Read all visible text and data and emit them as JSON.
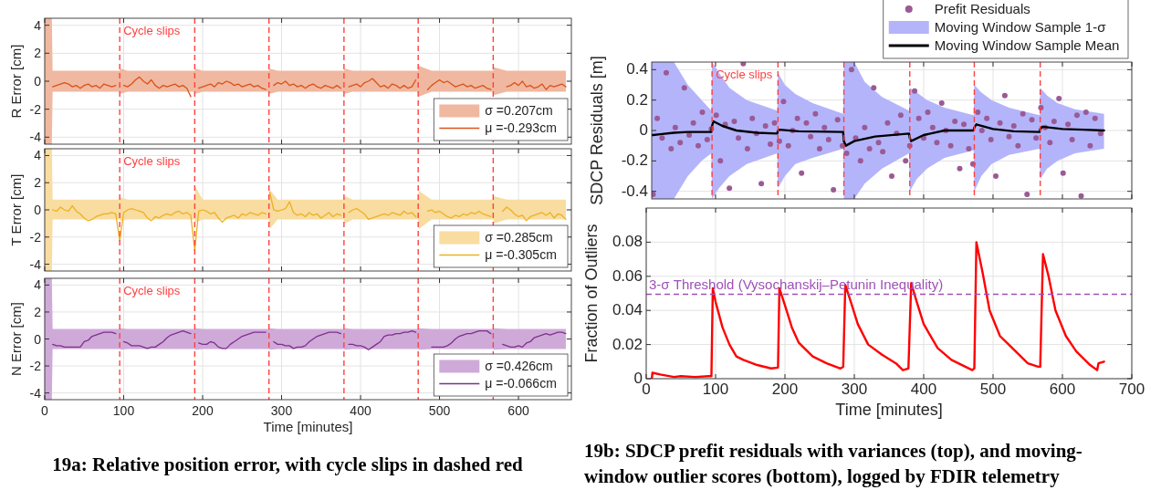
{
  "chart_data": [
    {
      "type": "line",
      "ylabel": "R Error [cm]",
      "xlim": [
        0,
        667
      ],
      "xticks": [
        0,
        100,
        200,
        300,
        400,
        500,
        600
      ],
      "ylim": [
        -4.5,
        4.5
      ],
      "yticks": [
        -4,
        -2,
        0,
        2,
        4
      ],
      "tick_labels": "y",
      "grid": true,
      "legend": "bottom right",
      "ref_lines": [
        {
          "axis": "x",
          "value": 95,
          "label": "Cycle slips",
          "color": "#ff4040",
          "line_style": "dashed"
        },
        {
          "axis": "x",
          "value": 190,
          "color": "#ff4040",
          "line_style": "dashed"
        },
        {
          "axis": "x",
          "value": 284,
          "color": "#ff4040",
          "line_style": "dashed"
        },
        {
          "axis": "x",
          "value": 379,
          "color": "#ff4040",
          "line_style": "dashed"
        },
        {
          "axis": "x",
          "value": 473,
          "color": "#ff4040",
          "line_style": "dashed"
        },
        {
          "axis": "x",
          "value": 568,
          "color": "#ff4040",
          "line_style": "dashed"
        }
      ],
      "series": [
        {
          "name": "σ =0.207cm",
          "color": "#f0b8a0",
          "x": [
            0,
            9,
            10,
            95,
            96,
            105,
            190,
            191,
            200,
            284,
            285,
            295,
            379,
            380,
            390,
            473,
            474,
            490,
            568,
            569,
            585,
            660
          ],
          "values": [
            null,
            null,
            null,
            null,
            null,
            null,
            null,
            null,
            null,
            null,
            null,
            null,
            null,
            null,
            null,
            null,
            null,
            null,
            null,
            null,
            null,
            null
          ],
          "upper": [
            4.5,
            4.5,
            0.75,
            0.75,
            0.9,
            0.75,
            0.75,
            0.9,
            0.75,
            0.75,
            0.9,
            0.75,
            0.75,
            0.9,
            0.75,
            0.75,
            1.1,
            0.75,
            0.75,
            1.0,
            0.75,
            0.75
          ],
          "lower": [
            -4.5,
            -4.5,
            -0.75,
            -0.75,
            -0.9,
            -0.75,
            -0.75,
            -0.9,
            -0.75,
            -0.75,
            -0.9,
            -0.75,
            -0.75,
            -0.9,
            -0.75,
            -0.75,
            -1.1,
            -0.75,
            -0.75,
            -1.0,
            -0.75,
            -0.75
          ]
        },
        {
          "name": "μ =-0.293cm",
          "color": "#d95319",
          "x": [
            10,
            15,
            20,
            25,
            30,
            35,
            40,
            45,
            50,
            55,
            60,
            65,
            70,
            75,
            80,
            85,
            90,
            100,
            105,
            110,
            115,
            120,
            125,
            130,
            135,
            140,
            145,
            150,
            155,
            160,
            165,
            170,
            175,
            180,
            185,
            195,
            200,
            205,
            210,
            215,
            220,
            225,
            230,
            235,
            240,
            245,
            250,
            255,
            260,
            265,
            270,
            275,
            280,
            290,
            295,
            300,
            305,
            310,
            315,
            320,
            325,
            330,
            335,
            340,
            345,
            350,
            355,
            360,
            365,
            370,
            375,
            385,
            390,
            395,
            400,
            405,
            410,
            415,
            420,
            425,
            430,
            435,
            440,
            445,
            450,
            455,
            460,
            465,
            470,
            485,
            490,
            495,
            500,
            505,
            510,
            515,
            520,
            525,
            530,
            535,
            540,
            545,
            550,
            555,
            560,
            565,
            585,
            590,
            595,
            600,
            605,
            610,
            615,
            620,
            625,
            630,
            635,
            640,
            645,
            650,
            655,
            660
          ],
          "values": [
            -0.4,
            -0.3,
            -0.2,
            -0.1,
            -0.2,
            -0.4,
            -0.3,
            -0.5,
            -0.3,
            -0.2,
            -0.4,
            -0.3,
            -0.5,
            -0.2,
            -0.3,
            -0.4,
            -0.3,
            -0.3,
            -0.4,
            -0.2,
            0.1,
            0.3,
            0.0,
            -0.2,
            0.1,
            -0.3,
            -0.5,
            -0.3,
            -0.4,
            -0.3,
            -0.2,
            -0.4,
            -0.3,
            -0.5,
            -1.1,
            -0.5,
            -0.4,
            -0.3,
            -0.2,
            -0.4,
            -0.1,
            -0.2,
            0.0,
            -0.1,
            -0.3,
            -0.2,
            -0.4,
            -0.3,
            -0.2,
            -0.4,
            -0.3,
            -0.5,
            -0.6,
            -0.3,
            -0.1,
            -0.2,
            0.0,
            -0.3,
            -0.2,
            -0.4,
            -0.3,
            -0.5,
            -0.3,
            -0.2,
            -0.4,
            -0.5,
            -0.3,
            -0.4,
            -0.5,
            -0.3,
            -0.5,
            -0.4,
            -0.3,
            -0.2,
            -0.4,
            -0.1,
            0.0,
            0.2,
            -0.1,
            -0.4,
            -0.3,
            -0.5,
            -0.2,
            -0.3,
            -0.5,
            -0.3,
            -0.5,
            -0.4,
            0.1,
            -0.6,
            -0.3,
            -0.1,
            0.1,
            -0.1,
            0.0,
            -0.2,
            -0.4,
            -0.3,
            -0.2,
            -0.4,
            -0.3,
            -0.5,
            -0.4,
            -0.3,
            -0.5,
            -0.6,
            -0.4,
            -0.3,
            -0.1,
            -0.3,
            0.0,
            -0.4,
            -0.3,
            -0.5,
            -0.4,
            -0.2,
            -0.6,
            -0.3,
            -0.4,
            -0.3,
            -0.2,
            -0.4
          ]
        }
      ]
    },
    {
      "type": "line",
      "ylabel": "T Error [cm]",
      "xlim": [
        0,
        667
      ],
      "xticks": [
        0,
        100,
        200,
        300,
        400,
        500,
        600
      ],
      "ylim": [
        -4.5,
        4.5
      ],
      "yticks": [
        -4,
        -2,
        0,
        2,
        4
      ],
      "tick_labels": "y",
      "grid": true,
      "legend": "bottom right",
      "ref_lines": [
        {
          "axis": "x",
          "value": 95,
          "label": "Cycle slips",
          "color": "#ff4040",
          "line_style": "dashed"
        },
        {
          "axis": "x",
          "value": 190,
          "color": "#ff4040",
          "line_style": "dashed"
        },
        {
          "axis": "x",
          "value": 284,
          "color": "#ff4040",
          "line_style": "dashed"
        },
        {
          "axis": "x",
          "value": 379,
          "color": "#ff4040",
          "line_style": "dashed"
        },
        {
          "axis": "x",
          "value": 473,
          "color": "#ff4040",
          "line_style": "dashed"
        },
        {
          "axis": "x",
          "value": 568,
          "color": "#ff4040",
          "line_style": "dashed"
        }
      ],
      "series": [
        {
          "name": "σ =0.285cm",
          "color": "#f8dca0",
          "x": [
            0,
            9,
            10,
            95,
            96,
            105,
            190,
            191,
            200,
            284,
            285,
            295,
            379,
            380,
            390,
            473,
            474,
            490,
            568,
            569,
            585,
            660
          ],
          "values": [
            null,
            null,
            null,
            null,
            null,
            null,
            null,
            null,
            null,
            null,
            null,
            null,
            null,
            null,
            null,
            null,
            null,
            null,
            null,
            null,
            null,
            null
          ],
          "upper": [
            4.5,
            4.5,
            0.75,
            0.75,
            0.9,
            0.75,
            0.75,
            1.7,
            0.75,
            0.75,
            1.5,
            0.75,
            0.75,
            1.0,
            0.75,
            0.75,
            1.4,
            0.75,
            0.75,
            1.0,
            0.75,
            0.75
          ],
          "lower": [
            -4.5,
            -4.5,
            -0.7,
            -0.7,
            -0.8,
            -0.7,
            -0.7,
            -0.9,
            -0.7,
            -0.7,
            -1.4,
            -0.7,
            -0.7,
            -1.0,
            -0.7,
            -0.7,
            -1.4,
            -0.7,
            -0.7,
            -1.0,
            -0.7,
            -0.7
          ]
        },
        {
          "name": "μ =-0.305cm",
          "color": "#edb120",
          "x": [
            10,
            15,
            20,
            25,
            30,
            35,
            40,
            45,
            50,
            55,
            60,
            65,
            70,
            75,
            80,
            85,
            90,
            95,
            100,
            105,
            110,
            115,
            120,
            125,
            130,
            135,
            140,
            145,
            150,
            155,
            160,
            165,
            170,
            175,
            180,
            185,
            190,
            195,
            200,
            205,
            210,
            215,
            220,
            225,
            230,
            235,
            240,
            245,
            250,
            255,
            260,
            265,
            270,
            275,
            280,
            285,
            290,
            295,
            300,
            305,
            310,
            315,
            320,
            325,
            330,
            335,
            340,
            345,
            350,
            355,
            360,
            365,
            370,
            375,
            385,
            390,
            395,
            400,
            405,
            410,
            415,
            420,
            425,
            430,
            435,
            440,
            445,
            450,
            455,
            460,
            465,
            470,
            485,
            490,
            495,
            500,
            505,
            510,
            515,
            520,
            525,
            530,
            535,
            540,
            545,
            550,
            555,
            560,
            565,
            580,
            585,
            590,
            595,
            600,
            605,
            610,
            615,
            620,
            625,
            630,
            635,
            640,
            645,
            650,
            655,
            660
          ],
          "values": [
            0.0,
            -0.1,
            0.2,
            0.0,
            -0.1,
            0.3,
            -0.1,
            -0.3,
            -0.6,
            -0.8,
            -0.7,
            -0.5,
            -0.4,
            -0.3,
            -0.3,
            -0.2,
            -0.3,
            -2.3,
            -0.2,
            0.0,
            0.1,
            0.0,
            -0.1,
            -0.2,
            -0.6,
            -0.8,
            -0.5,
            -0.6,
            -0.4,
            -0.3,
            -0.4,
            -0.2,
            -0.1,
            -0.3,
            -0.2,
            -0.4,
            -3.0,
            -0.1,
            0.0,
            -0.1,
            -0.3,
            -0.2,
            -0.6,
            -0.9,
            -0.6,
            -0.5,
            -0.4,
            -0.6,
            -0.3,
            -0.4,
            -0.2,
            -0.3,
            -0.4,
            -0.2,
            -0.3,
            1.3,
            0.0,
            -0.1,
            0.0,
            0.1,
            0.6,
            -0.2,
            -0.4,
            -0.3,
            -0.5,
            -0.2,
            -0.4,
            -0.3,
            -0.6,
            -0.4,
            -0.2,
            -0.5,
            -0.3,
            -0.4,
            -0.2,
            0.0,
            0.1,
            -0.1,
            -0.3,
            -0.7,
            -0.6,
            -0.5,
            -0.4,
            -0.3,
            -0.4,
            -0.2,
            -0.3,
            -0.4,
            -0.1,
            -0.3,
            -0.2,
            -0.5,
            -0.1,
            0.0,
            -0.2,
            -0.1,
            -0.3,
            -0.5,
            -0.6,
            -0.4,
            -0.5,
            -0.3,
            -0.4,
            -0.2,
            -0.3,
            -0.1,
            -0.3,
            -0.4,
            -0.5,
            -0.1,
            0.2,
            0.0,
            -0.3,
            -0.5,
            -0.4,
            -0.8,
            -0.5,
            -0.4,
            -0.3,
            -0.2,
            -0.4,
            -0.2,
            -0.6,
            -0.3,
            -0.4,
            -0.7
          ]
        }
      ]
    },
    {
      "type": "line",
      "ylabel": "N Error [cm]",
      "xlabel": "Time [minutes]",
      "xlim": [
        0,
        667
      ],
      "xticks": [
        0,
        100,
        200,
        300,
        400,
        500,
        600
      ],
      "ylim": [
        -4.5,
        4.5
      ],
      "yticks": [
        -4,
        -2,
        0,
        2,
        4
      ],
      "grid": true,
      "legend": "bottom right",
      "annotations": [
        "19a: Relative position error, with cycle slips in dashed red"
      ],
      "ref_lines": [
        {
          "axis": "x",
          "value": 95,
          "label": "Cycle slips",
          "color": "#ff4040",
          "line_style": "dashed"
        },
        {
          "axis": "x",
          "value": 190,
          "color": "#ff4040",
          "line_style": "dashed"
        },
        {
          "axis": "x",
          "value": 284,
          "color": "#ff4040",
          "line_style": "dashed"
        },
        {
          "axis": "x",
          "value": 379,
          "color": "#ff4040",
          "line_style": "dashed"
        },
        {
          "axis": "x",
          "value": 473,
          "color": "#ff4040",
          "line_style": "dashed"
        },
        {
          "axis": "x",
          "value": 568,
          "color": "#ff4040",
          "line_style": "dashed"
        }
      ],
      "series": [
        {
          "name": "σ =0.426cm",
          "color": "#cfaad8",
          "x": [
            0,
            9,
            10,
            95,
            96,
            105,
            190,
            191,
            200,
            284,
            285,
            295,
            379,
            380,
            390,
            473,
            474,
            490,
            568,
            569,
            585,
            660
          ],
          "values": [
            null,
            null,
            null,
            null,
            null,
            null,
            null,
            null,
            null,
            null,
            null,
            null,
            null,
            null,
            null,
            null,
            null,
            null,
            null,
            null,
            null,
            null
          ],
          "upper": [
            4.5,
            4.5,
            0.75,
            0.75,
            0.8,
            0.75,
            0.75,
            0.8,
            0.75,
            0.75,
            0.8,
            0.75,
            0.75,
            0.8,
            0.75,
            0.75,
            0.8,
            0.75,
            0.75,
            0.8,
            0.75,
            0.75
          ],
          "lower": [
            -4.5,
            -4.5,
            -0.75,
            -0.75,
            -0.8,
            -0.75,
            -0.75,
            -0.8,
            -0.75,
            -0.75,
            -0.8,
            -0.75,
            -0.75,
            -0.8,
            -0.75,
            -0.75,
            -0.8,
            -0.75,
            -0.75,
            -0.8,
            -0.75,
            -0.75
          ]
        },
        {
          "name": "μ =-0.066cm",
          "color": "#7e2f8e",
          "x": [
            10,
            15,
            20,
            25,
            30,
            35,
            40,
            45,
            50,
            55,
            60,
            65,
            70,
            75,
            80,
            85,
            90,
            100,
            105,
            110,
            115,
            120,
            125,
            130,
            135,
            140,
            145,
            150,
            155,
            160,
            165,
            170,
            175,
            180,
            185,
            195,
            200,
            205,
            210,
            215,
            220,
            225,
            230,
            235,
            240,
            245,
            250,
            255,
            260,
            265,
            270,
            275,
            280,
            290,
            295,
            300,
            305,
            310,
            315,
            320,
            325,
            330,
            335,
            340,
            345,
            350,
            355,
            360,
            365,
            370,
            375,
            385,
            390,
            395,
            400,
            405,
            410,
            415,
            420,
            425,
            430,
            435,
            440,
            445,
            450,
            455,
            460,
            465,
            470,
            490,
            495,
            500,
            505,
            510,
            515,
            520,
            525,
            530,
            535,
            540,
            545,
            550,
            555,
            560,
            565,
            580,
            585,
            590,
            595,
            600,
            605,
            610,
            615,
            620,
            625,
            630,
            635,
            640,
            645,
            650,
            655,
            660
          ],
          "values": [
            -0.4,
            -0.5,
            -0.5,
            -0.6,
            -0.6,
            -0.6,
            -0.6,
            -0.6,
            -0.2,
            -0.1,
            0.2,
            0.3,
            0.4,
            0.5,
            0.5,
            0.5,
            0.4,
            -0.2,
            -0.3,
            -0.5,
            -0.5,
            -0.5,
            -0.6,
            -0.7,
            -0.6,
            -0.6,
            -0.4,
            -0.2,
            0.1,
            0.3,
            0.4,
            0.5,
            0.6,
            0.5,
            0.4,
            -0.3,
            -0.4,
            -0.4,
            -0.2,
            -0.3,
            -0.6,
            -0.7,
            -0.7,
            -0.4,
            -0.2,
            0.0,
            0.2,
            0.3,
            0.4,
            0.5,
            0.5,
            0.5,
            0.5,
            -0.2,
            -0.4,
            -0.4,
            -0.5,
            -0.5,
            -0.7,
            -0.6,
            -0.6,
            -0.5,
            -0.2,
            0.0,
            0.2,
            0.3,
            0.4,
            0.5,
            0.5,
            0.5,
            0.4,
            -0.4,
            -0.4,
            -0.5,
            -0.5,
            -0.6,
            -0.8,
            -0.6,
            -0.4,
            -0.2,
            0.2,
            0.3,
            0.3,
            0.4,
            0.4,
            0.5,
            0.5,
            0.6,
            0.5,
            -0.6,
            -0.6,
            -0.6,
            -0.6,
            -0.5,
            -0.3,
            0.0,
            0.2,
            0.3,
            0.4,
            0.4,
            0.5,
            0.6,
            0.6,
            0.6,
            0.4,
            -0.4,
            -0.5,
            -0.6,
            -0.6,
            -0.5,
            -0.6,
            -0.3,
            -0.2,
            0.1,
            0.2,
            0.3,
            0.4,
            0.3,
            0.4,
            0.5,
            0.5,
            0.4
          ]
        }
      ]
    },
    {
      "type": "scatter",
      "ylabel": "SDCP Residuals [m]",
      "xlim": [
        8,
        700
      ],
      "xticks": [
        100,
        200,
        300,
        400,
        500,
        600,
        700
      ],
      "ylim": [
        -0.45,
        0.45
      ],
      "yticks": [
        -0.4,
        -0.2,
        0,
        0.2,
        0.4
      ],
      "tick_labels": "y",
      "grid": true,
      "legend": "top right",
      "ref_lines": [
        {
          "axis": "x",
          "value": 95,
          "label": "Cycle slips",
          "color": "#ff4040",
          "line_style": "dashed"
        },
        {
          "axis": "x",
          "value": 190,
          "color": "#ff4040",
          "line_style": "dashed"
        },
        {
          "axis": "x",
          "value": 285,
          "color": "#ff4040",
          "line_style": "dashed"
        },
        {
          "axis": "x",
          "value": 380,
          "color": "#ff4040",
          "line_style": "dashed"
        },
        {
          "axis": "x",
          "value": 473,
          "color": "#ff4040",
          "line_style": "dashed"
        },
        {
          "axis": "x",
          "value": 568,
          "color": "#ff4040",
          "line_style": "dashed"
        }
      ],
      "series": [
        {
          "name": "Prefit Residuals",
          "color": "#9a5a94",
          "marker": "circle",
          "x": [
            10,
            16,
            23,
            29,
            36,
            42,
            49,
            55,
            62,
            68,
            75,
            81,
            88,
            94,
            101,
            107,
            114,
            120,
            127,
            133,
            140,
            146,
            153,
            159,
            166,
            172,
            179,
            185,
            192,
            198,
            205,
            211,
            218,
            224,
            231,
            237,
            244,
            250,
            257,
            263,
            270,
            276,
            283,
            289,
            296,
            302,
            309,
            315,
            322,
            328,
            335,
            341,
            348,
            354,
            361,
            367,
            374,
            380,
            387,
            393,
            400,
            406,
            413,
            419,
            426,
            432,
            439,
            445,
            452,
            458,
            465,
            471,
            478,
            484,
            491,
            497,
            504,
            510,
            517,
            523,
            530,
            536,
            543,
            549,
            556,
            562,
            569,
            575,
            582,
            588,
            595,
            601,
            608,
            614,
            621,
            627,
            634,
            640,
            647,
            655
          ],
          "values": [
            -0.42,
            0.08,
            -0.05,
            0.38,
            -0.12,
            0.02,
            -0.08,
            0.28,
            -0.03,
            0.05,
            -0.1,
            0.12,
            -0.06,
            0.01,
            0.1,
            -0.2,
            0.04,
            -0.38,
            0.06,
            -0.05,
            0.44,
            -0.12,
            0.08,
            -0.02,
            -0.35,
            0.03,
            -0.09,
            0.05,
            -0.07,
            0.19,
            -0.1,
            0.0,
            0.08,
            -0.28,
            0.05,
            -0.04,
            0.11,
            -0.12,
            0.02,
            -0.06,
            -0.39,
            0.07,
            -0.1,
            -0.15,
            0.4,
            -0.05,
            -0.2,
            0.02,
            -0.12,
            0.28,
            -0.08,
            -0.14,
            0.05,
            -0.3,
            -0.02,
            0.1,
            -0.2,
            -0.1,
            0.26,
            0.08,
            -0.05,
            0.12,
            0.02,
            -0.08,
            0.18,
            0.0,
            -0.1,
            0.06,
            -0.25,
            0.04,
            -0.12,
            -0.22,
            0.12,
            0.0,
            0.08,
            -0.06,
            -0.3,
            0.05,
            0.23,
            -0.04,
            0.03,
            -0.1,
            0.11,
            -0.42,
            0.07,
            -0.05,
            0.15,
            0.02,
            -0.08,
            0.06,
            0.21,
            -0.28,
            0.04,
            -0.06,
            0.1,
            -0.43,
            0.12,
            -0.1,
            0.08,
            -0.02
          ]
        },
        {
          "type": "line",
          "name": "Moving Window Sample 1-σ",
          "color": "#b4b4fb",
          "x": [
            8,
            40,
            60,
            80,
            94,
            95,
            105,
            120,
            145,
            189,
            190,
            200,
            215,
            240,
            284,
            285,
            300,
            315,
            340,
            379,
            380,
            390,
            405,
            430,
            472,
            473,
            483,
            498,
            523,
            567,
            568,
            578,
            593,
            618,
            660
          ],
          "values": [
            null,
            null,
            null,
            null,
            null,
            null,
            null,
            null,
            null,
            null,
            null,
            null,
            null,
            null,
            null,
            null,
            null,
            null,
            null,
            null,
            null,
            null,
            null,
            null,
            null,
            null,
            null,
            null,
            null,
            null,
            null,
            null,
            null,
            null,
            null
          ],
          "upper": [
            0.45,
            0.45,
            0.3,
            0.2,
            0.13,
            0.45,
            0.38,
            0.28,
            0.2,
            0.13,
            0.38,
            0.3,
            0.24,
            0.18,
            0.11,
            0.45,
            0.45,
            0.32,
            0.22,
            0.13,
            0.28,
            0.25,
            0.2,
            0.15,
            0.1,
            0.3,
            0.25,
            0.2,
            0.15,
            0.1,
            0.28,
            0.23,
            0.18,
            0.14,
            0.11
          ],
          "lower": [
            -0.45,
            -0.45,
            -0.3,
            -0.2,
            -0.15,
            -0.45,
            -0.38,
            -0.3,
            -0.22,
            -0.15,
            -0.38,
            -0.3,
            -0.22,
            -0.18,
            -0.12,
            -0.45,
            -0.45,
            -0.35,
            -0.25,
            -0.15,
            -0.4,
            -0.32,
            -0.25,
            -0.18,
            -0.13,
            -0.4,
            -0.3,
            -0.22,
            -0.16,
            -0.12,
            -0.32,
            -0.25,
            -0.2,
            -0.15,
            -0.12
          ]
        },
        {
          "type": "line",
          "name": "Moving Window Sample Mean",
          "color": "#000000",
          "x": [
            8,
            10,
            20,
            40,
            60,
            94,
            95,
            97,
            110,
            130,
            160,
            189,
            190,
            192,
            220,
            284,
            285,
            288,
            300,
            330,
            379,
            380,
            382,
            400,
            430,
            472,
            473,
            476,
            500,
            530,
            567,
            568,
            571,
            600,
            630,
            660
          ],
          "values": [
            -0.03,
            -0.03,
            -0.025,
            -0.015,
            -0.01,
            -0.01,
            0.03,
            0.06,
            0.03,
            0.0,
            -0.015,
            -0.02,
            0.0,
            0.005,
            -0.005,
            -0.01,
            -0.07,
            -0.1,
            -0.07,
            -0.04,
            -0.02,
            -0.05,
            -0.07,
            -0.03,
            0.0,
            0.0,
            0.02,
            0.04,
            0.01,
            -0.005,
            -0.01,
            0.01,
            0.025,
            0.01,
            0.005,
            0.0
          ]
        }
      ]
    },
    {
      "type": "line",
      "ylabel": "Fraction of Outliers",
      "xlabel": "Time [minutes]",
      "xlim": [
        0,
        700
      ],
      "xticks": [
        0,
        100,
        200,
        300,
        400,
        500,
        600,
        700
      ],
      "ylim": [
        0,
        0.1
      ],
      "yticks": [
        0,
        0.02,
        0.04,
        0.06,
        0.08
      ],
      "grid": true,
      "annotations": [
        "19b: SDCP prefit residuals with variances (top), and moving-window outlier scores (bottom), logged by FDIR telemetry"
      ],
      "ref_lines": [
        {
          "axis": "y",
          "value": 0.0495,
          "label": "3-σ Threshold (Vysochanskij–Petunin Inequality)",
          "color": "#a050b8",
          "line_style": "dashed"
        }
      ],
      "color": "#ff0000",
      "x": [
        8,
        9,
        20,
        40,
        50,
        70,
        90,
        94,
        96,
        100,
        110,
        120,
        130,
        140,
        160,
        180,
        190,
        192,
        200,
        210,
        220,
        240,
        260,
        280,
        284,
        287,
        295,
        305,
        320,
        340,
        360,
        370,
        378,
        382,
        390,
        400,
        420,
        440,
        460,
        470,
        473,
        476,
        485,
        495,
        510,
        530,
        550,
        565,
        568,
        572,
        580,
        590,
        605,
        620,
        640,
        650,
        652,
        660
      ],
      "values": [
        0,
        0.0035,
        0.0025,
        0.001,
        0.0015,
        0.001,
        0.0015,
        0.0015,
        0.053,
        0.045,
        0.03,
        0.02,
        0.013,
        0.011,
        0.008,
        0.006,
        0.0065,
        0.053,
        0.043,
        0.03,
        0.021,
        0.013,
        0.009,
        0.006,
        0.007,
        0.055,
        0.045,
        0.032,
        0.02,
        0.014,
        0.009,
        0.005,
        0.006,
        0.056,
        0.045,
        0.032,
        0.018,
        0.011,
        0.007,
        0.005,
        0.006,
        0.08,
        0.062,
        0.04,
        0.025,
        0.017,
        0.009,
        0.007,
        0.007,
        0.073,
        0.06,
        0.04,
        0.025,
        0.016,
        0.008,
        0.005,
        0.009,
        0.01
      ]
    }
  ]
}
